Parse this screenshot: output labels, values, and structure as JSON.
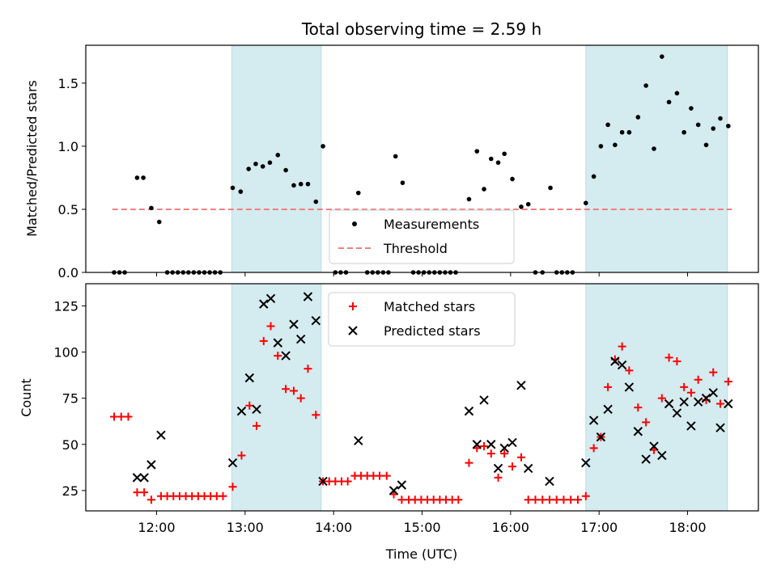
{
  "chart_data": {
    "type": "scatter",
    "title": "Total observing time = 2.59 h",
    "xlabel": "Time (UTC)",
    "x_ticks": [
      "12:00",
      "13:00",
      "14:00",
      "15:00",
      "16:00",
      "17:00",
      "18:00"
    ],
    "x_tick_hours": [
      12,
      13,
      14,
      15,
      16,
      17,
      18
    ],
    "xlim_hours": [
      11.2,
      18.8
    ],
    "shaded_intervals_hours": [
      [
        12.85,
        13.86
      ],
      [
        16.85,
        18.45
      ]
    ],
    "shade_color": "#d4ebf0",
    "top_panel": {
      "ylabel": "Matched/Predicted stars",
      "ylim": [
        0,
        1.8
      ],
      "y_ticks": [
        "0.0",
        "0.5",
        "1.0",
        "1.5"
      ],
      "y_tick_values": [
        0,
        0.5,
        1.0,
        1.5
      ],
      "threshold": {
        "name": "Threshold",
        "value": 0.5,
        "x_range_hours": [
          11.5,
          18.5
        ],
        "color": "#f08080"
      },
      "measurements": {
        "name": "Measurements",
        "color": "#000000",
        "points": [
          [
            11.52,
            0
          ],
          [
            11.58,
            0
          ],
          [
            11.64,
            0
          ],
          [
            11.78,
            0.75
          ],
          [
            11.85,
            0.75
          ],
          [
            11.94,
            0.51
          ],
          [
            12.03,
            0.4
          ],
          [
            12.12,
            0
          ],
          [
            12.18,
            0
          ],
          [
            12.24,
            0
          ],
          [
            12.3,
            0
          ],
          [
            12.36,
            0
          ],
          [
            12.42,
            0
          ],
          [
            12.48,
            0
          ],
          [
            12.54,
            0
          ],
          [
            12.6,
            0
          ],
          [
            12.66,
            0
          ],
          [
            12.72,
            0
          ],
          [
            12.86,
            0.67
          ],
          [
            12.95,
            0.64
          ],
          [
            13.04,
            0.82
          ],
          [
            13.12,
            0.86
          ],
          [
            13.2,
            0.84
          ],
          [
            13.28,
            0.87
          ],
          [
            13.37,
            0.93
          ],
          [
            13.46,
            0.81
          ],
          [
            13.55,
            0.69
          ],
          [
            13.63,
            0.7
          ],
          [
            13.71,
            0.7
          ],
          [
            13.8,
            0.56
          ],
          [
            13.88,
            1.0
          ],
          [
            14.02,
            0
          ],
          [
            14.08,
            0
          ],
          [
            14.14,
            0
          ],
          [
            14.28,
            0.63
          ],
          [
            14.38,
            0
          ],
          [
            14.44,
            0
          ],
          [
            14.5,
            0
          ],
          [
            14.56,
            0
          ],
          [
            14.62,
            0
          ],
          [
            14.7,
            0.92
          ],
          [
            14.78,
            0.71
          ],
          [
            14.9,
            0
          ],
          [
            14.96,
            0
          ],
          [
            15.02,
            0
          ],
          [
            15.08,
            0
          ],
          [
            15.14,
            0
          ],
          [
            15.2,
            0
          ],
          [
            15.26,
            0
          ],
          [
            15.32,
            0
          ],
          [
            15.38,
            0
          ],
          [
            15.53,
            0.58
          ],
          [
            15.62,
            0.96
          ],
          [
            15.7,
            0.66
          ],
          [
            15.78,
            0.9
          ],
          [
            15.86,
            0.87
          ],
          [
            15.93,
            0.94
          ],
          [
            16.02,
            0.74
          ],
          [
            16.12,
            0.52
          ],
          [
            16.2,
            0.54
          ],
          [
            16.28,
            0
          ],
          [
            16.36,
            0
          ],
          [
            16.45,
            0.67
          ],
          [
            16.52,
            0
          ],
          [
            16.58,
            0
          ],
          [
            16.64,
            0
          ],
          [
            16.7,
            0
          ],
          [
            16.85,
            0.55
          ],
          [
            16.94,
            0.76
          ],
          [
            17.02,
            1.0
          ],
          [
            17.1,
            1.17
          ],
          [
            17.18,
            1.01
          ],
          [
            17.26,
            1.11
          ],
          [
            17.34,
            1.11
          ],
          [
            17.44,
            1.23
          ],
          [
            17.53,
            1.48
          ],
          [
            17.62,
            0.98
          ],
          [
            17.71,
            1.71
          ],
          [
            17.79,
            1.35
          ],
          [
            17.88,
            1.42
          ],
          [
            17.96,
            1.11
          ],
          [
            18.04,
            1.3
          ],
          [
            18.12,
            1.17
          ],
          [
            18.21,
            1.01
          ],
          [
            18.29,
            1.14
          ],
          [
            18.37,
            1.22
          ],
          [
            18.46,
            1.16
          ]
        ]
      },
      "legend": [
        "Measurements",
        "Threshold"
      ]
    },
    "bottom_panel": {
      "ylabel": "Count",
      "ylim": [
        14,
        137
      ],
      "y_ticks": [
        "25",
        "50",
        "75",
        "100",
        "125"
      ],
      "y_tick_values": [
        25,
        50,
        75,
        100,
        125
      ],
      "matched": {
        "name": "Matched stars",
        "color": "#ff0000",
        "points": [
          [
            11.52,
            65
          ],
          [
            11.6,
            65
          ],
          [
            11.68,
            65
          ],
          [
            11.78,
            24
          ],
          [
            11.86,
            24
          ],
          [
            11.94,
            20
          ],
          [
            12.05,
            22
          ],
          [
            12.12,
            22
          ],
          [
            12.19,
            22
          ],
          [
            12.26,
            22
          ],
          [
            12.33,
            22
          ],
          [
            12.4,
            22
          ],
          [
            12.47,
            22
          ],
          [
            12.54,
            22
          ],
          [
            12.61,
            22
          ],
          [
            12.68,
            22
          ],
          [
            12.75,
            22
          ],
          [
            12.86,
            27
          ],
          [
            12.96,
            44
          ],
          [
            13.05,
            71
          ],
          [
            13.13,
            60
          ],
          [
            13.21,
            106
          ],
          [
            13.29,
            114
          ],
          [
            13.37,
            98
          ],
          [
            13.46,
            80
          ],
          [
            13.55,
            79
          ],
          [
            13.63,
            75
          ],
          [
            13.71,
            91
          ],
          [
            13.8,
            66
          ],
          [
            13.88,
            30
          ],
          [
            13.95,
            30
          ],
          [
            14.02,
            30
          ],
          [
            14.09,
            30
          ],
          [
            14.16,
            30
          ],
          [
            14.24,
            33
          ],
          [
            14.31,
            33
          ],
          [
            14.38,
            33
          ],
          [
            14.45,
            33
          ],
          [
            14.52,
            33
          ],
          [
            14.6,
            33
          ],
          [
            14.68,
            23
          ],
          [
            14.77,
            20
          ],
          [
            14.85,
            20
          ],
          [
            14.92,
            20
          ],
          [
            14.99,
            20
          ],
          [
            15.06,
            20
          ],
          [
            15.13,
            20
          ],
          [
            15.2,
            20
          ],
          [
            15.27,
            20
          ],
          [
            15.34,
            20
          ],
          [
            15.41,
            20
          ],
          [
            15.53,
            40
          ],
          [
            15.62,
            48
          ],
          [
            15.7,
            49
          ],
          [
            15.78,
            45
          ],
          [
            15.86,
            32
          ],
          [
            15.93,
            45
          ],
          [
            16.02,
            38
          ],
          [
            16.12,
            43
          ],
          [
            16.2,
            20
          ],
          [
            16.28,
            20
          ],
          [
            16.36,
            20
          ],
          [
            16.44,
            20
          ],
          [
            16.52,
            20
          ],
          [
            16.6,
            20
          ],
          [
            16.68,
            20
          ],
          [
            16.76,
            20
          ],
          [
            16.85,
            22
          ],
          [
            16.94,
            48
          ],
          [
            17.02,
            54
          ],
          [
            17.1,
            81
          ],
          [
            17.18,
            96
          ],
          [
            17.26,
            103
          ],
          [
            17.34,
            90
          ],
          [
            17.44,
            70
          ],
          [
            17.53,
            62
          ],
          [
            17.62,
            47
          ],
          [
            17.71,
            75
          ],
          [
            17.79,
            97
          ],
          [
            17.88,
            95
          ],
          [
            17.96,
            81
          ],
          [
            18.04,
            78
          ],
          [
            18.12,
            85
          ],
          [
            18.21,
            74
          ],
          [
            18.29,
            89
          ],
          [
            18.37,
            72
          ],
          [
            18.46,
            84
          ]
        ]
      },
      "predicted": {
        "name": "Predicted stars",
        "color": "#000000",
        "points": [
          [
            11.78,
            32
          ],
          [
            11.86,
            32
          ],
          [
            11.94,
            39
          ],
          [
            12.05,
            55
          ],
          [
            12.86,
            40
          ],
          [
            12.96,
            68
          ],
          [
            13.05,
            86
          ],
          [
            13.13,
            69
          ],
          [
            13.21,
            126
          ],
          [
            13.29,
            129
          ],
          [
            13.37,
            105
          ],
          [
            13.46,
            98
          ],
          [
            13.55,
            115
          ],
          [
            13.63,
            107
          ],
          [
            13.71,
            130
          ],
          [
            13.8,
            117
          ],
          [
            13.88,
            30
          ],
          [
            14.28,
            52
          ],
          [
            14.68,
            25
          ],
          [
            14.77,
            28
          ],
          [
            15.53,
            68
          ],
          [
            15.62,
            50
          ],
          [
            15.7,
            74
          ],
          [
            15.78,
            50
          ],
          [
            15.86,
            37
          ],
          [
            15.93,
            48
          ],
          [
            16.02,
            51
          ],
          [
            16.12,
            82
          ],
          [
            16.2,
            37
          ],
          [
            16.44,
            30
          ],
          [
            16.85,
            40
          ],
          [
            16.94,
            63
          ],
          [
            17.02,
            54
          ],
          [
            17.1,
            69
          ],
          [
            17.18,
            95
          ],
          [
            17.26,
            93
          ],
          [
            17.34,
            81
          ],
          [
            17.44,
            57
          ],
          [
            17.53,
            42
          ],
          [
            17.62,
            49
          ],
          [
            17.71,
            44
          ],
          [
            17.79,
            72
          ],
          [
            17.88,
            67
          ],
          [
            17.96,
            73
          ],
          [
            18.04,
            60
          ],
          [
            18.12,
            73
          ],
          [
            18.21,
            75
          ],
          [
            18.29,
            78
          ],
          [
            18.37,
            59
          ],
          [
            18.46,
            72
          ]
        ]
      },
      "legend": [
        "Matched stars",
        "Predicted stars"
      ]
    }
  }
}
